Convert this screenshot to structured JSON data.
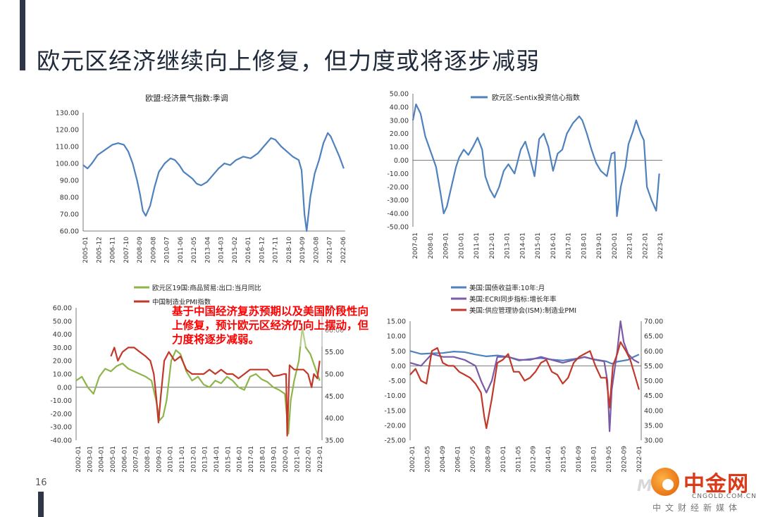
{
  "page": {
    "title": "欧元区经济继续向上修复，但力度或将逐步减弱",
    "page_number": "16",
    "annotation": "基于中国经济复苏预期以及美国阶段性向上修复，预计欧元区经济仍向上摆动，但力度将逐步减弱。",
    "watermark": {
      "name": "中金网",
      "url": "CNGOLD.COM.CN",
      "tagline": "中文财经新媒体",
      "ghost": "M"
    }
  },
  "chart_data": [
    {
      "type": "line",
      "title": "欧盟:经济景气指数:季调",
      "legend": "top-center",
      "yticks": [
        "130.00",
        "120.00",
        "110.00",
        "100.00",
        "90.00",
        "80.00",
        "70.00",
        "60.00"
      ],
      "ylim": [
        60,
        130
      ],
      "xticks": [
        "2005-01",
        "2005-12",
        "2006-11",
        "2007-10",
        "2008-09",
        "2009-08",
        "2010-07",
        "2011-06",
        "2012-05",
        "2013-04",
        "2014-03",
        "2015-02",
        "2016-01",
        "2016-12",
        "2017-11",
        "2018-10",
        "2019-09",
        "2020-08",
        "2021-07",
        "2022-06"
      ],
      "xlim": [
        2005.0,
        2023.0
      ],
      "series": [
        {
          "name": "",
          "color": "#4f81bd",
          "x": [
            2005.0,
            2005.3,
            2005.6,
            2006.0,
            2006.5,
            2007.0,
            2007.4,
            2007.8,
            2008.1,
            2008.4,
            2008.7,
            2008.9,
            2009.1,
            2009.3,
            2009.6,
            2009.9,
            2010.2,
            2010.6,
            2011.0,
            2011.3,
            2011.6,
            2011.9,
            2012.2,
            2012.5,
            2012.8,
            2013.1,
            2013.5,
            2013.9,
            2014.3,
            2014.7,
            2015.1,
            2015.5,
            2016.0,
            2016.5,
            2017.0,
            2017.5,
            2017.9,
            2018.2,
            2018.6,
            2019.0,
            2019.4,
            2019.8,
            2020.0,
            2020.2,
            2020.35,
            2020.6,
            2020.9,
            2021.2,
            2021.5,
            2021.8,
            2022.0,
            2022.3,
            2022.6,
            2022.9
          ],
          "y": [
            99,
            97,
            100,
            105,
            108,
            111,
            112,
            111,
            107,
            100,
            90,
            82,
            72,
            69,
            75,
            86,
            95,
            100,
            103,
            102,
            99,
            95,
            93,
            91,
            88,
            87,
            89,
            93,
            97,
            100,
            99,
            102,
            104,
            103,
            106,
            111,
            115,
            114,
            110,
            107,
            104,
            102,
            96,
            70,
            60,
            80,
            94,
            102,
            112,
            118,
            116,
            110,
            104,
            97
          ]
        }
      ]
    },
    {
      "type": "line",
      "title": "欧元区:Sentix投资信心指数",
      "legend": "top-center",
      "yticks": [
        "50.00",
        "40.00",
        "30.00",
        "20.00",
        "10.00",
        "0.00",
        "-10.00",
        "-20.00",
        "-30.00",
        "-40.00",
        "-50.00"
      ],
      "ylim": [
        -50,
        50
      ],
      "xticks": [
        "2007-01",
        "2008-01",
        "2009-01",
        "2010-01",
        "2011-01",
        "2012-01",
        "2013-01",
        "2014-01",
        "2015-01",
        "2016-01",
        "2017-01",
        "2018-01",
        "2019-01",
        "2020-01",
        "2021-01",
        "2022-01",
        "2023-01"
      ],
      "xlim": [
        2007.0,
        2023.2
      ],
      "series": [
        {
          "name": "欧元区:Sentix投资信心指数",
          "color": "#4f81bd",
          "x": [
            2007.0,
            2007.2,
            2007.5,
            2007.8,
            2008.2,
            2008.5,
            2008.8,
            2009.0,
            2009.2,
            2009.5,
            2009.8,
            2010.0,
            2010.3,
            2010.6,
            2010.9,
            2011.2,
            2011.5,
            2011.7,
            2012.0,
            2012.3,
            2012.6,
            2012.9,
            2013.2,
            2013.6,
            2014.0,
            2014.3,
            2014.6,
            2014.9,
            2015.2,
            2015.5,
            2015.8,
            2016.1,
            2016.4,
            2016.7,
            2017.0,
            2017.4,
            2017.8,
            2018.0,
            2018.3,
            2018.6,
            2018.9,
            2019.2,
            2019.6,
            2019.9,
            2020.1,
            2020.25,
            2020.5,
            2020.8,
            2021.0,
            2021.3,
            2021.5,
            2021.8,
            2022.0,
            2022.2,
            2022.5,
            2022.8,
            2023.0
          ],
          "y": [
            30,
            42,
            35,
            18,
            5,
            -5,
            -25,
            -40,
            -35,
            -20,
            -5,
            2,
            8,
            4,
            10,
            17,
            8,
            -12,
            -22,
            -28,
            -20,
            -8,
            -3,
            -10,
            8,
            14,
            2,
            -12,
            16,
            20,
            10,
            -8,
            5,
            8,
            20,
            28,
            33,
            30,
            20,
            8,
            -2,
            -8,
            -12,
            5,
            6,
            -42,
            -20,
            -5,
            12,
            22,
            30,
            20,
            15,
            -20,
            -30,
            -38,
            -10
          ]
        }
      ]
    },
    {
      "type": "line",
      "title": "",
      "legend": "top-left",
      "yticks_left": [
        "60.00",
        "50.00",
        "40.00",
        "30.00",
        "20.00",
        "10.00",
        "0.00",
        "-10.00",
        "-20.00",
        "-30.00",
        "-40.00"
      ],
      "yticks_right": [
        "65.00",
        "60.00",
        "55.00",
        "50.00",
        "45.00",
        "40.00",
        "35.00"
      ],
      "ylim_left": [
        -40,
        60
      ],
      "ylim_right": [
        35,
        65
      ],
      "xticks": [
        "2002-01",
        "2003-01",
        "2004-01",
        "2005-01",
        "2006-01",
        "2007-01",
        "2008-01",
        "2009-01",
        "2010-01",
        "2011-01",
        "2012-01",
        "2013-01",
        "2014-01",
        "2015-01",
        "2016-01",
        "2017-01",
        "2018-01",
        "2019-01",
        "2020-01",
        "2021-01",
        "2022-01",
        "2023-01"
      ],
      "xlim": [
        2002.0,
        2023.2
      ],
      "series": [
        {
          "name": "欧元区19国:商品贸易:出口:当月同比",
          "axis": "left",
          "color": "#8db54a",
          "x": [
            2002.0,
            2002.5,
            2003.0,
            2003.5,
            2004.0,
            2004.5,
            2005.0,
            2005.5,
            2006.0,
            2006.5,
            2007.0,
            2007.5,
            2008.0,
            2008.5,
            2008.9,
            2009.2,
            2009.5,
            2009.8,
            2010.2,
            2010.6,
            2011.0,
            2011.5,
            2012.0,
            2012.5,
            2013.0,
            2013.5,
            2014.0,
            2014.5,
            2015.0,
            2015.5,
            2016.0,
            2016.5,
            2017.0,
            2017.5,
            2018.0,
            2018.5,
            2019.0,
            2019.5,
            2020.0,
            2020.3,
            2020.5,
            2020.8,
            2021.2,
            2021.5,
            2021.8,
            2022.2,
            2022.6,
            2023.0
          ],
          "y": [
            5,
            8,
            0,
            -5,
            8,
            14,
            12,
            16,
            18,
            14,
            12,
            10,
            8,
            5,
            -10,
            -25,
            -22,
            -10,
            20,
            28,
            25,
            12,
            5,
            8,
            2,
            0,
            5,
            3,
            8,
            5,
            0,
            -2,
            8,
            10,
            6,
            4,
            0,
            -2,
            -5,
            -35,
            -10,
            5,
            20,
            45,
            30,
            25,
            15,
            5
          ]
        },
        {
          "name": "中国制造业PMI指数",
          "axis": "right",
          "color": "#c0392b",
          "x": [
            2005.0,
            2005.3,
            2005.6,
            2006.0,
            2006.5,
            2007.0,
            2007.5,
            2008.0,
            2008.4,
            2008.7,
            2008.9,
            2009.1,
            2009.3,
            2009.6,
            2010.0,
            2010.5,
            2011.0,
            2011.5,
            2012.0,
            2012.5,
            2013.0,
            2013.5,
            2014.0,
            2014.5,
            2015.0,
            2015.5,
            2016.0,
            2016.5,
            2017.0,
            2017.5,
            2018.0,
            2018.5,
            2019.0,
            2019.5,
            2019.9,
            2020.1,
            2020.2,
            2020.4,
            2020.8,
            2021.2,
            2021.6,
            2022.0,
            2022.3,
            2022.5,
            2022.8,
            2023.0
          ],
          "y": [
            54,
            56,
            53,
            55,
            56,
            56,
            55,
            54,
            53,
            50,
            45,
            39,
            45,
            53,
            55,
            53,
            54,
            51,
            50,
            50,
            50,
            51,
            50,
            51,
            50,
            50,
            49,
            50,
            51,
            51,
            51,
            51,
            49.5,
            49.7,
            50,
            50,
            36,
            52,
            51,
            51,
            51,
            50,
            47,
            50,
            49,
            53
          ]
        }
      ]
    },
    {
      "type": "line",
      "title": "",
      "legend": "top-left",
      "yticks_left": [
        "15.00",
        "10.00",
        "5.00",
        "0.00",
        "-5.00",
        "-10.00",
        "-15.00",
        "-20.00",
        "-25.00"
      ],
      "yticks_right": [
        "70.00",
        "65.00",
        "60.00",
        "55.00",
        "50.00",
        "45.00",
        "40.00",
        "35.00",
        "30.00"
      ],
      "ylim_left": [
        -25,
        15
      ],
      "ylim_right": [
        30,
        70
      ],
      "xticks": [
        "2002-01",
        "2003-05",
        "2004-09",
        "2006-01",
        "2007-05",
        "2008-09",
        "2010-01",
        "2011-05",
        "2012-09",
        "2014-01",
        "2015-05",
        "2016-09",
        "2018-01",
        "2019-05",
        "2020-09",
        "2022-01"
      ],
      "xlim": [
        2002.0,
        2023.2
      ],
      "series": [
        {
          "name": "美国:国债收益率:10年:月",
          "axis": "left",
          "color": "#4f81bd",
          "x": [
            2002.0,
            2003.0,
            2004.0,
            2005.0,
            2006.0,
            2007.0,
            2008.0,
            2009.0,
            2010.0,
            2011.0,
            2012.0,
            2013.0,
            2014.0,
            2015.0,
            2016.0,
            2017.0,
            2018.0,
            2019.0,
            2020.0,
            2020.5,
            2021.0,
            2022.0,
            2022.5,
            2023.0
          ],
          "y": [
            5,
            4,
            4.2,
            4.3,
            4.8,
            4.6,
            3.8,
            3.2,
            3.5,
            3.0,
            1.8,
            2.3,
            2.6,
            2.1,
            1.8,
            2.3,
            2.9,
            2.1,
            1.5,
            0.7,
            1.4,
            2.0,
            3.0,
            3.8
          ]
        },
        {
          "name": "美国:ECRI同步指标:增长年率",
          "axis": "left",
          "color": "#7b5aa6",
          "x": [
            2002.0,
            2003.0,
            2004.0,
            2005.0,
            2006.0,
            2007.0,
            2008.0,
            2008.5,
            2009.0,
            2009.5,
            2010.0,
            2011.0,
            2012.0,
            2013.0,
            2014.0,
            2015.0,
            2016.0,
            2017.0,
            2018.0,
            2019.0,
            2019.8,
            2020.1,
            2020.3,
            2020.5,
            2021.0,
            2021.3,
            2021.6,
            2022.0,
            2022.5,
            2023.0
          ],
          "y": [
            1,
            0,
            4,
            3,
            3,
            2,
            0,
            -5,
            -9,
            -5,
            3,
            3,
            2,
            2,
            3,
            2,
            1,
            2,
            3,
            2,
            1.5,
            -5,
            -22,
            -8,
            5,
            15,
            8,
            4,
            2,
            1
          ]
        },
        {
          "name": "美国:供应管理协会(ISM):制造业PMI",
          "axis": "right",
          "color": "#c0392b",
          "x": [
            2002.0,
            2002.5,
            2003.0,
            2003.5,
            2004.0,
            2004.5,
            2005.0,
            2005.5,
            2006.0,
            2006.5,
            2007.0,
            2007.5,
            2008.0,
            2008.5,
            2008.8,
            2009.0,
            2009.5,
            2010.0,
            2010.5,
            2011.0,
            2011.5,
            2012.0,
            2012.5,
            2013.0,
            2013.5,
            2014.0,
            2014.5,
            2015.0,
            2015.5,
            2016.0,
            2016.5,
            2017.0,
            2017.5,
            2018.0,
            2018.5,
            2019.0,
            2019.5,
            2020.0,
            2020.3,
            2020.6,
            2021.0,
            2021.3,
            2021.8,
            2022.2,
            2022.6,
            2023.0
          ],
          "y": [
            52,
            54,
            50,
            49,
            60,
            61,
            56,
            55,
            55,
            53,
            52,
            51,
            49,
            46,
            38,
            34,
            44,
            56,
            57,
            59,
            53,
            53,
            50,
            51,
            53,
            56,
            57,
            53,
            52,
            49,
            51,
            56,
            58,
            59,
            60,
            55,
            51,
            51,
            41,
            55,
            59,
            63,
            60,
            57,
            52,
            47
          ]
        }
      ]
    }
  ]
}
